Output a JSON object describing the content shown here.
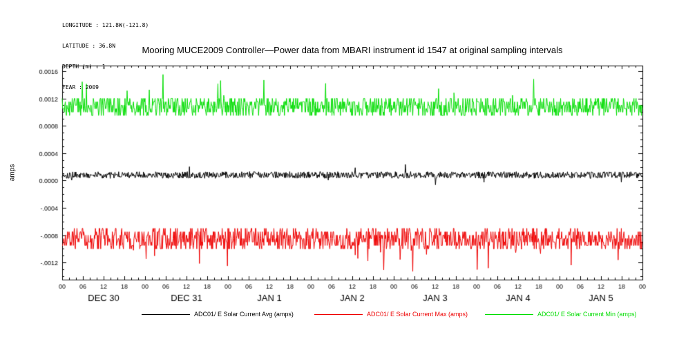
{
  "header": {
    "meta_lines": [
      "LONGITUDE : 121.8W(-121.8)",
      "LATITUDE : 36.8N",
      "DEPTH (m) : 1",
      "YEAR : 2009"
    ],
    "title": "Mooring MUCE2009 Controller—Power data from MBARI instrument id 1547 at original sampling intervals"
  },
  "chart_data": {
    "type": "line",
    "title": "Mooring MUCE2009 Controller—Power data from MBARI instrument id 1547 at original sampling intervals",
    "xlabel": "",
    "ylabel": "amps",
    "ylim": [
      -0.00145,
      0.00168
    ],
    "grid": false,
    "legend_position": "bottom",
    "y_ticks": [
      {
        "value": 0.0016,
        "label": "0.0016"
      },
      {
        "value": 0.0012,
        "label": "0.0012"
      },
      {
        "value": 0.0008,
        "label": "0.0008"
      },
      {
        "value": 0.0004,
        "label": "0.0004"
      },
      {
        "value": 0.0,
        "label": "0.0000"
      },
      {
        "value": -0.0004,
        "label": "-.0004"
      },
      {
        "value": -0.0008,
        "label": "-.0008"
      },
      {
        "value": -0.0012,
        "label": "-.0012"
      }
    ],
    "y_minor_tick_step": 0.0001,
    "x_hours_total": 168,
    "x_tick_interval_hours": 6,
    "x_minor_tick_interval_hours": 2,
    "x_tick_labels": [
      "00",
      "06",
      "12",
      "18",
      "00",
      "06",
      "12",
      "18",
      "00",
      "06",
      "12",
      "18",
      "00",
      "06",
      "12",
      "18",
      "00",
      "06",
      "12",
      "18",
      "00",
      "06",
      "12",
      "18",
      "00",
      "06",
      "12",
      "18",
      "00"
    ],
    "day_labels": [
      "DEC 30",
      "DEC 31",
      "JAN 1",
      "JAN 2",
      "JAN 3",
      "JAN 4",
      "JAN 5"
    ],
    "series": [
      {
        "name": "ADC01/ E Solar Current Avg (amps)",
        "color": "#000000",
        "base": 8e-05,
        "jitter": 5e-05,
        "quant": 0,
        "spike_prob": 0.02,
        "spike_mag": 0.00012,
        "spike_dir": 0,
        "clamp_min": -0.00012,
        "clamp_max": 0.00028,
        "seed": 101
      },
      {
        "name": "ADC01/ E Solar Current Max (amps)",
        "color": "#ee0000",
        "base": -0.00085,
        "jitter": 0.00016,
        "quant": 5e-05,
        "spike_prob": 0.03,
        "spike_mag": 0.0004,
        "spike_dir": -1,
        "clamp_min": -0.00133,
        "clamp_max": -0.00064,
        "seed": 202
      },
      {
        "name": "ADC01/ E Solar Current Min (amps)",
        "color": "#00dd00",
        "base": 0.00108,
        "jitter": 0.00014,
        "quant": 5e-05,
        "spike_prob": 0.025,
        "spike_mag": 0.00045,
        "spike_dir": 1,
        "clamp_min": 0.00092,
        "clamp_max": 0.00163,
        "seed": 303
      }
    ]
  }
}
